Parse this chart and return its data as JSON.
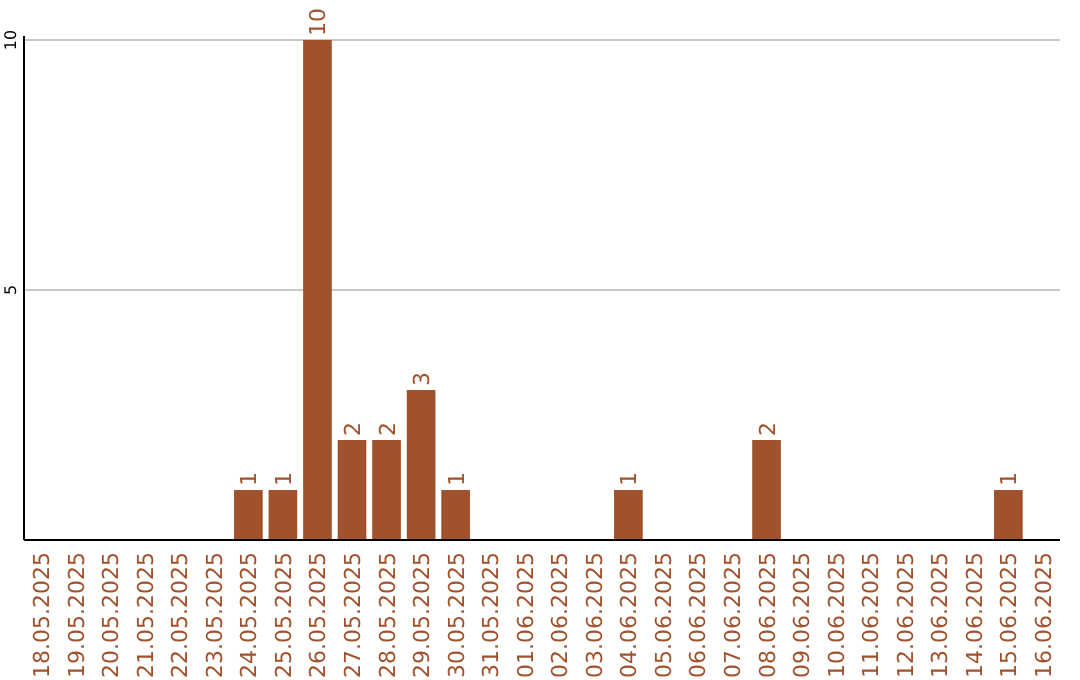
{
  "chart_data": {
    "type": "bar",
    "categories": [
      "18.05.2025",
      "19.05.2025",
      "20.05.2025",
      "21.05.2025",
      "22.05.2025",
      "23.05.2025",
      "24.05.2025",
      "25.05.2025",
      "26.05.2025",
      "27.05.2025",
      "28.05.2025",
      "29.05.2025",
      "30.05.2025",
      "31.05.2025",
      "01.06.2025",
      "02.06.2025",
      "03.06.2025",
      "04.06.2025",
      "05.06.2025",
      "06.06.2025",
      "07.06.2025",
      "08.06.2025",
      "09.06.2025",
      "10.06.2025",
      "11.06.2025",
      "12.06.2025",
      "13.06.2025",
      "14.06.2025",
      "15.06.2025",
      "16.06.2025"
    ],
    "values": [
      0,
      0,
      0,
      0,
      0,
      0,
      1,
      1,
      10,
      2,
      2,
      3,
      1,
      0,
      0,
      0,
      0,
      1,
      0,
      0,
      0,
      2,
      0,
      0,
      0,
      0,
      0,
      0,
      1,
      0
    ],
    "value_labels": [
      null,
      null,
      null,
      null,
      null,
      null,
      "1",
      "1",
      "10",
      "2",
      "2",
      "3",
      "1",
      null,
      null,
      null,
      null,
      "1",
      null,
      null,
      null,
      "2",
      null,
      null,
      null,
      null,
      null,
      null,
      "1",
      null
    ],
    "color": "#a0522d",
    "ylim": [
      0,
      10
    ],
    "yticks": [
      5,
      10
    ],
    "grid": "y"
  }
}
